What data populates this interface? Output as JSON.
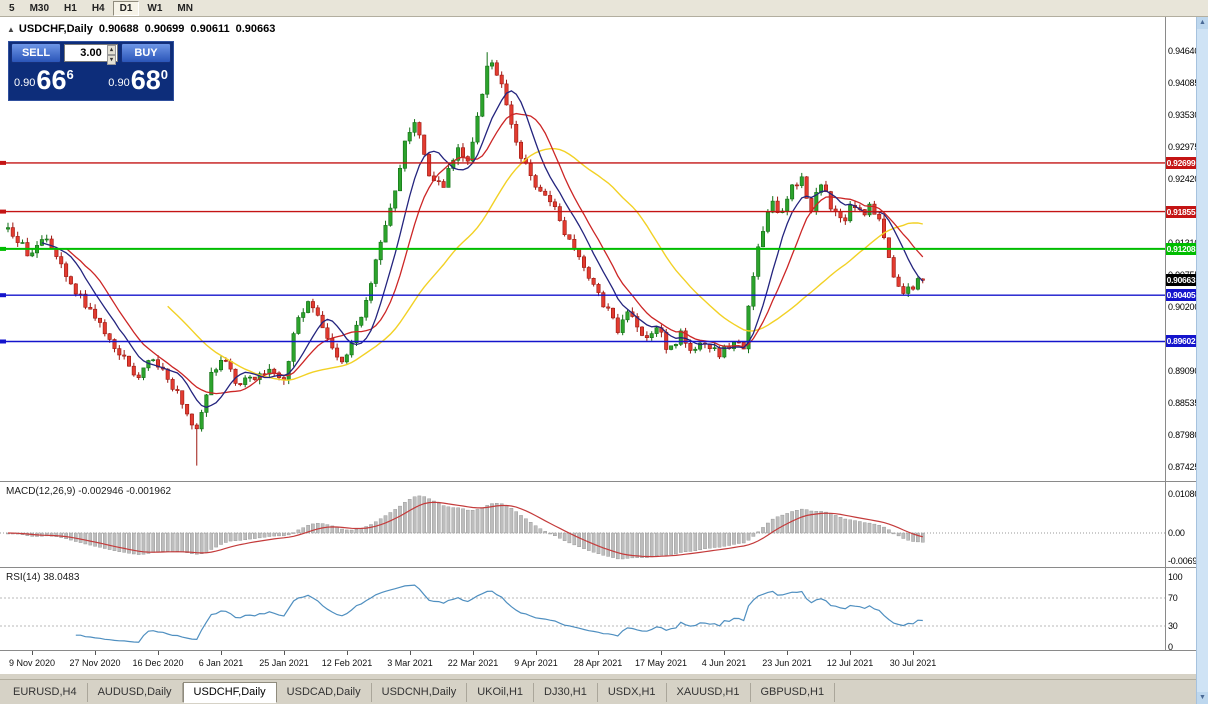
{
  "colors": {
    "up": "#2ca32c",
    "up_stroke": "#116e14",
    "down": "#e23b30",
    "down_stroke": "#9c1710",
    "ma_fast": "#24247e",
    "ma_mid": "#cc2626",
    "ma_slow": "#f2d125",
    "hline_red": "#c41414",
    "hline_green": "#00bd00",
    "hline_blue": "#1414cc",
    "macd_hist": "#bdbdbd",
    "macd_hist_stroke": "#8f8f8f",
    "macd_signal": "#c43b3b",
    "rsi_line": "#4f8fc0",
    "current_label_bg": "#000000"
  },
  "icons": {
    "collapse": "▲",
    "spin_up": "▴",
    "spin_down": "▾",
    "scroll_up": "▲",
    "scroll_down": "▼"
  },
  "toolbar": {
    "periods": [
      "5",
      "M30",
      "H1",
      "H4",
      "D1",
      "W1",
      "MN"
    ],
    "active": "D1"
  },
  "chart_header": {
    "symbol": "USDCHF,Daily",
    "open": "0.90688",
    "high": "0.90699",
    "low": "0.90611",
    "close": "0.90663"
  },
  "trade_panel": {
    "sell_label": "SELL",
    "buy_label": "BUY",
    "volume": "3.00",
    "sell_price_prefix": "0.90",
    "sell_price_big": "66",
    "sell_price_sup": "6",
    "buy_price_prefix": "0.90",
    "buy_price_big": "68",
    "buy_price_sup": "0"
  },
  "bottom_tabs": {
    "tabs": [
      "EURUSD,H4",
      "AUDUSD,Daily",
      "USDCHF,Daily",
      "USDCAD,Daily",
      "USDCNH,Daily",
      "UKOil,H1",
      "DJ30,H1",
      "USDX,H1",
      "XAUUSD,H1",
      "GBPUSD,H1"
    ],
    "active": "USDCHF,Daily"
  },
  "chart_data": {
    "type": "candlestick",
    "symbol": "USDCHF",
    "timeframe": "Daily",
    "n_candles": 190,
    "last_candle": {
      "open": 0.90688,
      "high": 0.90699,
      "low": 0.90611,
      "close": 0.90663
    },
    "current_price": 0.90663,
    "current_price_label": "0.90663",
    "price_path": [
      [
        0.0,
        0.9155
      ],
      [
        0.024,
        0.911
      ],
      [
        0.04,
        0.914
      ],
      [
        0.057,
        0.9095
      ],
      [
        0.078,
        0.904
      ],
      [
        0.1,
        0.899
      ],
      [
        0.122,
        0.8935
      ],
      [
        0.143,
        0.89
      ],
      [
        0.16,
        0.8935
      ],
      [
        0.176,
        0.8885
      ],
      [
        0.192,
        0.8855
      ],
      [
        0.205,
        0.88
      ],
      [
        0.212,
        0.8835
      ],
      [
        0.22,
        0.89
      ],
      [
        0.236,
        0.8925
      ],
      [
        0.252,
        0.8885
      ],
      [
        0.268,
        0.89
      ],
      [
        0.285,
        0.8915
      ],
      [
        0.301,
        0.889
      ],
      [
        0.317,
        0.9
      ],
      [
        0.33,
        0.9035
      ],
      [
        0.35,
        0.896
      ],
      [
        0.366,
        0.8925
      ],
      [
        0.385,
        0.9
      ],
      [
        0.404,
        0.911
      ],
      [
        0.421,
        0.92
      ],
      [
        0.435,
        0.931
      ],
      [
        0.446,
        0.934
      ],
      [
        0.461,
        0.925
      ],
      [
        0.475,
        0.923
      ],
      [
        0.491,
        0.929
      ],
      [
        0.504,
        0.927
      ],
      [
        0.518,
        0.939
      ],
      [
        0.526,
        0.9445
      ],
      [
        0.537,
        0.9415
      ],
      [
        0.548,
        0.935
      ],
      [
        0.559,
        0.929
      ],
      [
        0.573,
        0.9235
      ],
      [
        0.589,
        0.922
      ],
      [
        0.605,
        0.916
      ],
      [
        0.622,
        0.9115
      ],
      [
        0.641,
        0.905
      ],
      [
        0.654,
        0.902
      ],
      [
        0.665,
        0.898
      ],
      [
        0.679,
        0.901
      ],
      [
        0.696,
        0.896
      ],
      [
        0.709,
        0.8985
      ],
      [
        0.722,
        0.8945
      ],
      [
        0.736,
        0.8975
      ],
      [
        0.75,
        0.894
      ],
      [
        0.763,
        0.896
      ],
      [
        0.777,
        0.8935
      ],
      [
        0.792,
        0.8962
      ],
      [
        0.804,
        0.895
      ],
      [
        0.813,
        0.906
      ],
      [
        0.824,
        0.915
      ],
      [
        0.835,
        0.9205
      ],
      [
        0.846,
        0.918
      ],
      [
        0.857,
        0.923
      ],
      [
        0.867,
        0.9245
      ],
      [
        0.878,
        0.9185
      ],
      [
        0.889,
        0.924
      ],
      [
        0.9,
        0.9195
      ],
      [
        0.911,
        0.9165
      ],
      [
        0.922,
        0.9195
      ],
      [
        0.933,
        0.918
      ],
      [
        0.943,
        0.9195
      ],
      [
        0.952,
        0.917
      ],
      [
        0.961,
        0.912
      ],
      [
        0.97,
        0.9055
      ],
      [
        0.978,
        0.904
      ],
      [
        0.989,
        0.9058
      ],
      [
        1.0,
        0.9066
      ]
    ],
    "wick_low_event": {
      "index": 39,
      "low": 0.8745
    },
    "wick_high_event": {
      "index": 99,
      "high": 0.9462
    },
    "y_axis": {
      "top_price": 0.9464,
      "step": 0.00555,
      "labels": [
        "0.94640",
        "0.94085",
        "0.93530",
        "0.92975",
        "0.92420",
        "0.91865",
        "0.91310",
        "0.90755",
        "0.90200",
        "0.89645",
        "0.89090",
        "0.88535",
        "0.87980",
        "0.87425"
      ]
    },
    "x_axis": {
      "labels": [
        "9 Nov 2020",
        "27 Nov 2020",
        "16 Dec 2020",
        "6 Jan 2021",
        "25 Jan 2021",
        "12 Feb 2021",
        "3 Mar 2021",
        "22 Mar 2021",
        "9 Apr 2021",
        "28 Apr 2021",
        "17 May 2021",
        "4 Jun 2021",
        "23 Jun 2021",
        "12 Jul 2021",
        "30 Jul 2021"
      ]
    },
    "horizontal_lines": [
      {
        "price": 0.92699,
        "label": "0.92699",
        "color": "red"
      },
      {
        "price": 0.91855,
        "label": "0.91855",
        "color": "red"
      },
      {
        "price": 0.91208,
        "label": "0.91208",
        "color": "green"
      },
      {
        "price": 0.90405,
        "label": "0.90405",
        "color": "blue"
      },
      {
        "price": 0.89602,
        "label": "0.89602",
        "color": "blue"
      }
    ],
    "overlays": {
      "sma_fast": 8,
      "sma_mid": 13,
      "sma_slow": 34
    },
    "macd": {
      "title": "MACD(12,26,9) -0.002946 -0.001962",
      "fast": 12,
      "slow": 26,
      "signal": 9,
      "axis_labels": [
        "0.010805",
        "0.00",
        "-0.006948"
      ]
    },
    "rsi": {
      "title": "RSI(14) 38.0483",
      "period": 14,
      "value": 38.0483,
      "axis_labels": [
        "100",
        "70",
        "30",
        "0"
      ],
      "levels": [
        70,
        30
      ]
    }
  }
}
